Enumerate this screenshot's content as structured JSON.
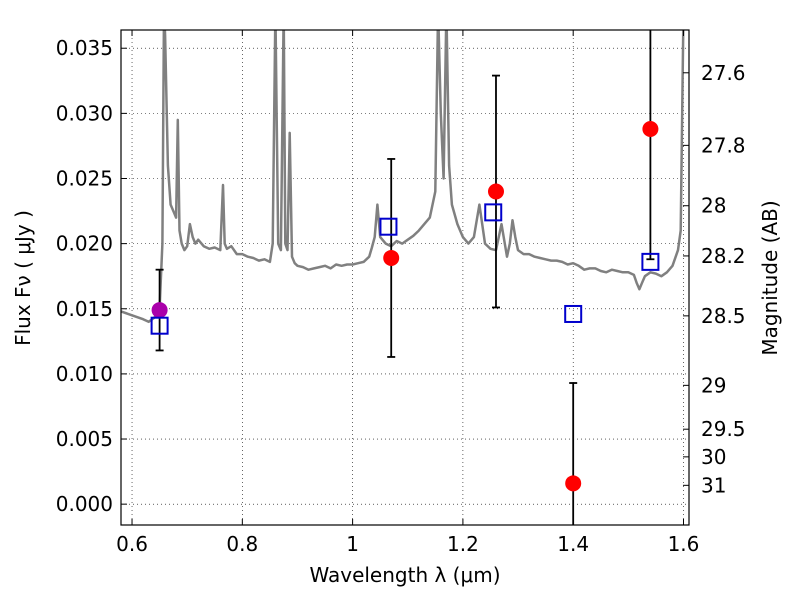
{
  "chart_data": {
    "type": "scatter",
    "xlabel": "Wavelength  λ (μm)",
    "ylabel": "Flux  Fν  ( μJy )",
    "y2label": "Magnitude (AB)",
    "xlim": [
      0.58,
      1.61
    ],
    "ylim": [
      -0.0016,
      0.0364
    ],
    "grid": true,
    "x_ticks": [
      {
        "value": 0.6,
        "label": "0.6"
      },
      {
        "value": 0.8,
        "label": "0.8"
      },
      {
        "value": 1.0,
        "label": "1"
      },
      {
        "value": 1.2,
        "label": "1.2"
      },
      {
        "value": 1.4,
        "label": "1.4"
      },
      {
        "value": 1.6,
        "label": "1.6"
      }
    ],
    "y_ticks": [
      {
        "value": 0.0,
        "label": "0.000"
      },
      {
        "value": 0.005,
        "label": "0.005"
      },
      {
        "value": 0.01,
        "label": "0.010"
      },
      {
        "value": 0.015,
        "label": "0.015"
      },
      {
        "value": 0.02,
        "label": "0.020"
      },
      {
        "value": 0.025,
        "label": "0.025"
      },
      {
        "value": 0.03,
        "label": "0.030"
      },
      {
        "value": 0.035,
        "label": "0.035"
      }
    ],
    "mag_ticks": [
      {
        "value": 27.6,
        "label": "27.6"
      },
      {
        "value": 27.8,
        "label": "27.8"
      },
      {
        "value": 28.0,
        "label": "28"
      },
      {
        "value": 28.2,
        "label": "28.2"
      },
      {
        "value": 28.5,
        "label": "28.5"
      },
      {
        "value": 29.0,
        "label": "29"
      },
      {
        "value": 29.5,
        "label": "29.5"
      },
      {
        "value": 30.0,
        "label": "30"
      },
      {
        "value": 31.0,
        "label": "31"
      }
    ],
    "series": [
      {
        "kind": "line",
        "color": "#808080",
        "x": [
          0.58,
          0.6,
          0.62,
          0.63,
          0.64,
          0.645,
          0.65,
          0.652,
          0.655,
          0.658,
          0.66,
          0.665,
          0.67,
          0.675,
          0.68,
          0.683,
          0.686,
          0.69,
          0.695,
          0.7,
          0.705,
          0.71,
          0.715,
          0.72,
          0.73,
          0.74,
          0.75,
          0.76,
          0.765,
          0.768,
          0.772,
          0.78,
          0.79,
          0.8,
          0.81,
          0.82,
          0.83,
          0.84,
          0.85,
          0.855,
          0.86,
          0.865,
          0.87,
          0.875,
          0.878,
          0.882,
          0.886,
          0.89,
          0.895,
          0.9,
          0.91,
          0.92,
          0.93,
          0.94,
          0.95,
          0.96,
          0.97,
          0.98,
          0.99,
          1.0,
          1.01,
          1.02,
          1.03,
          1.035,
          1.04,
          1.045,
          1.05,
          1.06,
          1.07,
          1.08,
          1.09,
          1.1,
          1.11,
          1.12,
          1.13,
          1.14,
          1.15,
          1.155,
          1.16,
          1.165,
          1.17,
          1.175,
          1.18,
          1.19,
          1.2,
          1.21,
          1.22,
          1.23,
          1.24,
          1.25,
          1.26,
          1.27,
          1.28,
          1.285,
          1.29,
          1.295,
          1.3,
          1.31,
          1.32,
          1.33,
          1.34,
          1.35,
          1.36,
          1.37,
          1.38,
          1.39,
          1.4,
          1.41,
          1.42,
          1.43,
          1.44,
          1.45,
          1.46,
          1.47,
          1.48,
          1.49,
          1.5,
          1.51,
          1.515,
          1.52,
          1.525,
          1.53,
          1.54,
          1.55,
          1.56,
          1.57,
          1.58,
          1.59,
          1.595,
          1.6,
          1.61
        ],
        "y": [
          0.0148,
          0.0145,
          0.0142,
          0.014,
          0.0143,
          0.0146,
          0.015,
          0.017,
          0.02,
          0.038,
          0.036,
          0.026,
          0.023,
          0.0225,
          0.022,
          0.0295,
          0.021,
          0.02,
          0.0195,
          0.0198,
          0.0215,
          0.0205,
          0.02,
          0.0203,
          0.0198,
          0.0196,
          0.0197,
          0.0195,
          0.0245,
          0.02,
          0.0196,
          0.0198,
          0.0192,
          0.0192,
          0.019,
          0.0189,
          0.0187,
          0.0188,
          0.0186,
          0.02,
          0.038,
          0.02,
          0.0195,
          0.038,
          0.02,
          0.0195,
          0.0285,
          0.019,
          0.0185,
          0.0183,
          0.0182,
          0.018,
          0.0181,
          0.0182,
          0.0183,
          0.0181,
          0.0184,
          0.0183,
          0.0184,
          0.0184,
          0.0185,
          0.0186,
          0.019,
          0.0197,
          0.0205,
          0.023,
          0.0205,
          0.02,
          0.0198,
          0.0202,
          0.02,
          0.0203,
          0.0206,
          0.021,
          0.0215,
          0.022,
          0.024,
          0.038,
          0.03,
          0.025,
          0.038,
          0.026,
          0.023,
          0.0215,
          0.0205,
          0.02,
          0.0205,
          0.023,
          0.02,
          0.0196,
          0.0195,
          0.0215,
          0.019,
          0.02,
          0.0218,
          0.0205,
          0.0195,
          0.0192,
          0.0192,
          0.019,
          0.0189,
          0.0188,
          0.0187,
          0.0187,
          0.0186,
          0.0184,
          0.0185,
          0.0183,
          0.018,
          0.0181,
          0.0181,
          0.0179,
          0.0178,
          0.018,
          0.0179,
          0.0178,
          0.0178,
          0.0176,
          0.017,
          0.0165,
          0.017,
          0.0175,
          0.0178,
          0.0177,
          0.0175,
          0.0178,
          0.0183,
          0.0195,
          0.021,
          0.038,
          0.038
        ]
      },
      {
        "kind": "points",
        "marker": "circle",
        "color": "#ff0000",
        "x": [
          1.07,
          1.26,
          1.4,
          1.54
        ],
        "y": [
          0.0189,
          0.024,
          0.0016,
          0.0288
        ],
        "yerr": [
          0.0076,
          0.0089,
          0.0077,
          0.01
        ]
      },
      {
        "kind": "points",
        "marker": "circle",
        "color": "#aa00aa",
        "x": [
          0.65
        ],
        "y": [
          0.0149
        ],
        "yerr": [
          0.0031
        ]
      },
      {
        "kind": "points",
        "marker": "square",
        "color": "#0000cc",
        "x": [
          0.65,
          1.065,
          1.255,
          1.4,
          1.54
        ],
        "y": [
          0.0137,
          0.0213,
          0.0224,
          0.0146,
          0.0186
        ]
      }
    ]
  }
}
